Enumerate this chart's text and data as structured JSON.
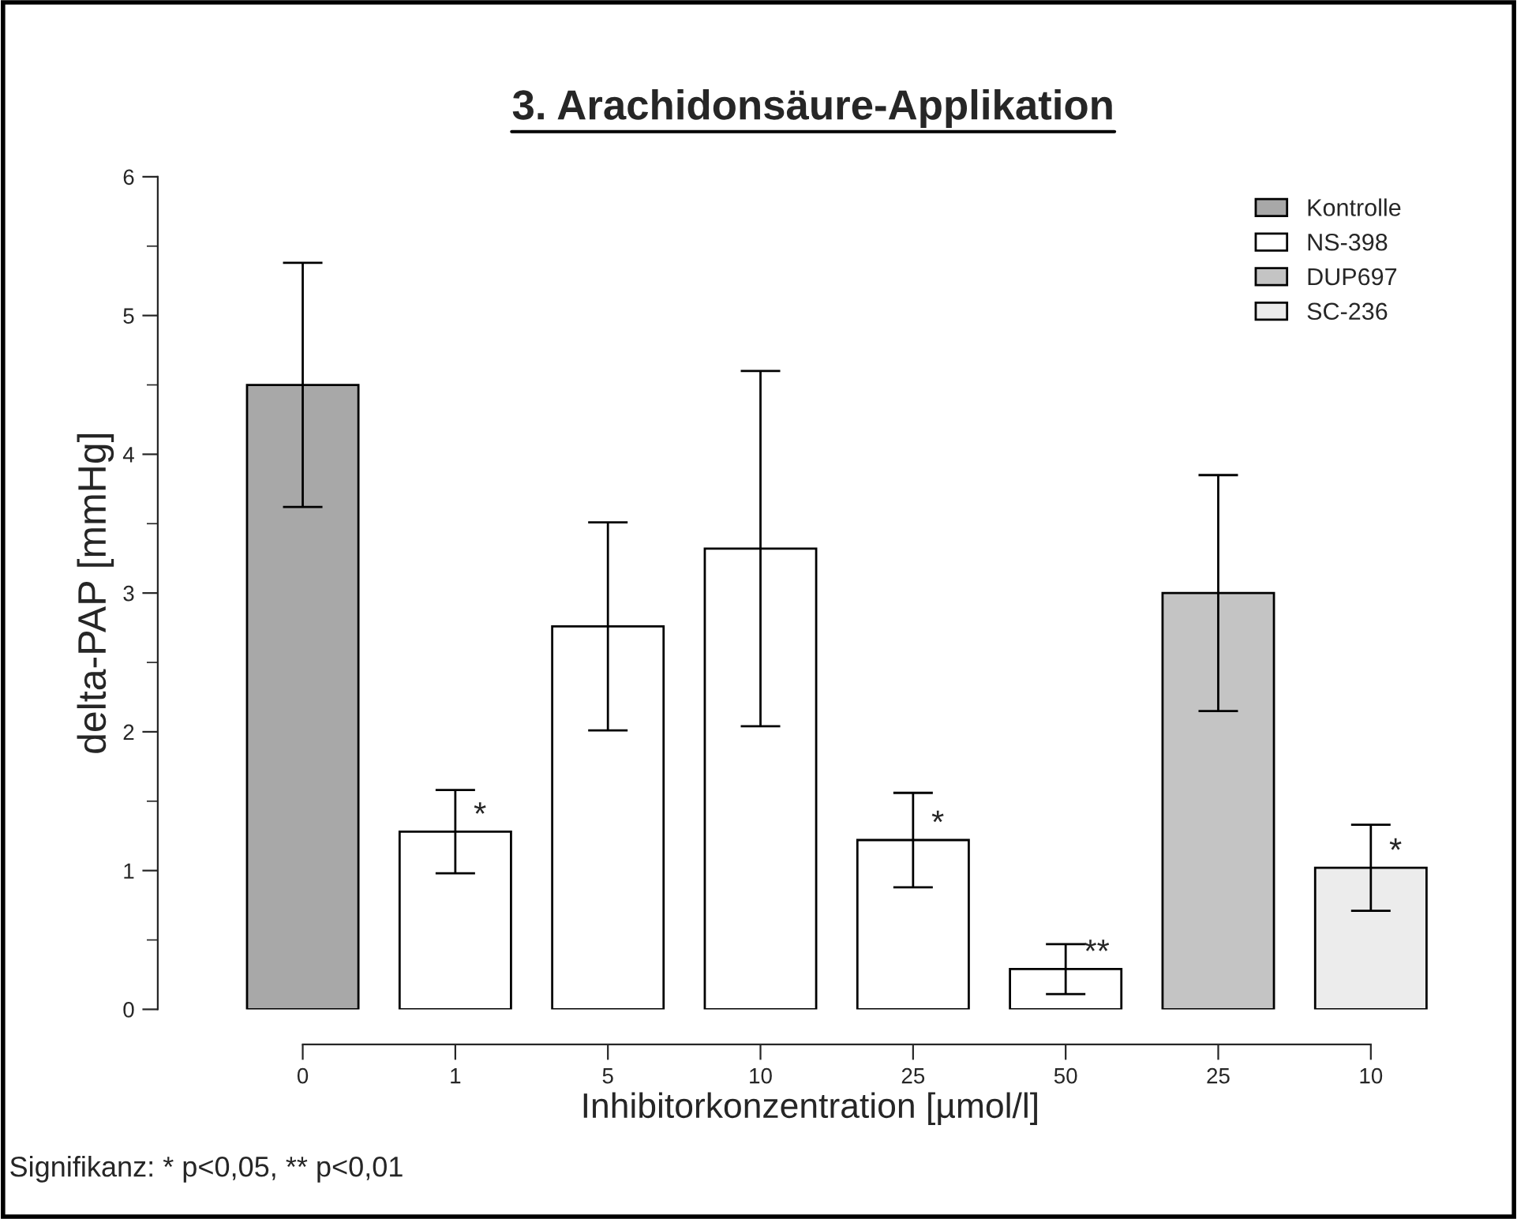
{
  "chart_data": {
    "type": "bar",
    "title": "3. Arachidonsäure-Applikation",
    "xlabel": "Inhibitorkonzentration [µmol/l]",
    "ylabel": "delta-PAP [mmHg]",
    "categories": [
      "0",
      "1",
      "5",
      "10",
      "25",
      "50",
      "25",
      "10"
    ],
    "series": [
      {
        "name": "Kontrolle",
        "color": "#a8a8a8",
        "values": [
          4.5,
          null,
          null,
          null,
          null,
          null,
          null,
          null
        ],
        "errors": [
          0.88,
          null,
          null,
          null,
          null,
          null,
          null,
          null
        ]
      },
      {
        "name": "NS-398",
        "color": "#ffffff",
        "values": [
          null,
          1.28,
          2.76,
          3.32,
          1.22,
          0.29,
          null,
          null
        ],
        "errors": [
          null,
          0.3,
          0.75,
          1.28,
          0.34,
          0.18,
          null,
          null
        ],
        "value_labels": [
          null,
          "*",
          null,
          null,
          "*",
          "**",
          null,
          null
        ]
      },
      {
        "name": "DUP697",
        "color": "#c4c4c4",
        "values": [
          null,
          null,
          null,
          null,
          null,
          null,
          3.0,
          null
        ],
        "errors": [
          null,
          null,
          null,
          null,
          null,
          null,
          0.85,
          null
        ]
      },
      {
        "name": "SC-236",
        "color": "#ececec",
        "values": [
          null,
          null,
          null,
          null,
          null,
          null,
          null,
          1.02
        ],
        "errors": [
          null,
          null,
          null,
          null,
          null,
          null,
          null,
          0.31
        ],
        "value_labels": [
          null,
          null,
          null,
          null,
          null,
          null,
          null,
          "*"
        ]
      }
    ],
    "ylim": [
      0,
      6
    ],
    "yticks": [
      0,
      1,
      2,
      3,
      4,
      5,
      6
    ],
    "grid": false,
    "legend": "top right",
    "annotations": [
      "Signifikanz: * p<0,05, ** p<0,01"
    ]
  }
}
